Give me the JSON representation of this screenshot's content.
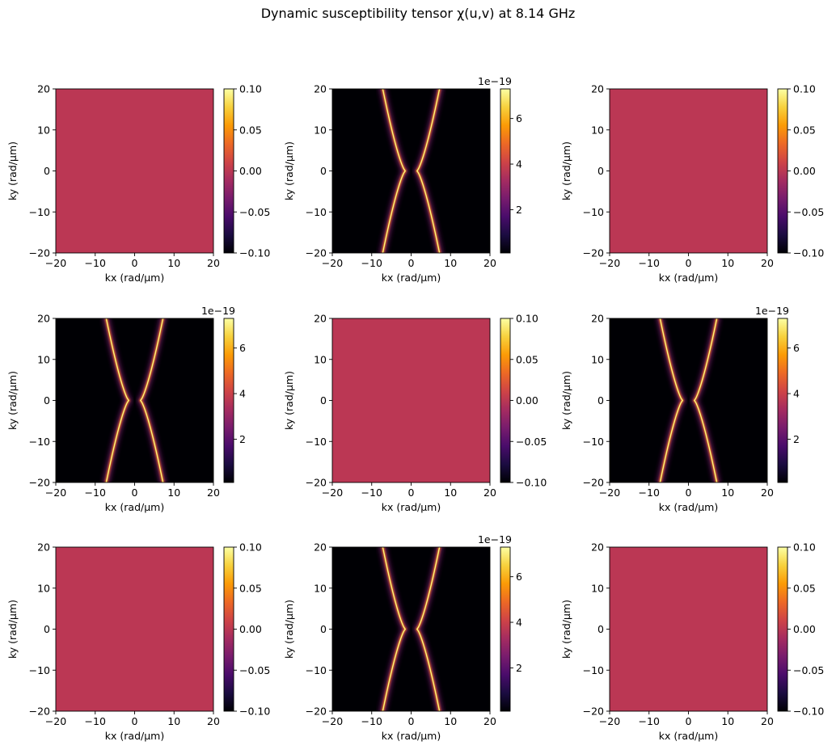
{
  "figure": {
    "title": "Dynamic susceptibility tensor χ(u,v) at 8.14 GHz"
  },
  "colors": {
    "uniform_field": "#bb3754",
    "colormap": "inferno",
    "colormap_stops": [
      "#000004",
      "#1b0c41",
      "#4a0c6b",
      "#781c6d",
      "#a52c60",
      "#cf4446",
      "#ed6925",
      "#fb9b06",
      "#f7d13d",
      "#fcffa4"
    ]
  },
  "chart_data": [
    {
      "type": "heatmap",
      "panel": "(1,1)",
      "xlabel": "kx (rad/µm)",
      "ylabel": "ky (rad/µm)",
      "xlim": [
        -20,
        20
      ],
      "ylim": [
        -20,
        20
      ],
      "xticks": [
        -20,
        -10,
        0,
        10,
        20
      ],
      "yticks": [
        -20,
        -10,
        0,
        10,
        20
      ],
      "field": "uniform",
      "value": 0.0,
      "colorbar": {
        "range": [
          -0.1,
          0.1
        ],
        "ticks": [
          "0.10",
          "0.05",
          "0.00",
          "−0.05",
          "−0.10"
        ],
        "tick_values": [
          0.1,
          0.05,
          0.0,
          -0.05,
          -0.1
        ],
        "offset": ""
      }
    },
    {
      "type": "heatmap",
      "panel": "(1,2)",
      "xlabel": "kx (rad/µm)",
      "ylabel": "ky (rad/µm)",
      "xlim": [
        -20,
        20
      ],
      "ylim": [
        -20,
        20
      ],
      "xticks": [
        -20,
        -10,
        0,
        10,
        20
      ],
      "yticks": [
        -20,
        -10,
        0,
        10,
        20
      ],
      "field": "dispersion_branches",
      "branch_kx_at_ky0": 1.5,
      "branch_kx_at_ky20": 7.2,
      "peak_value": 7.2e-19,
      "colorbar": {
        "range": [
          0.1,
          7.3
        ],
        "ticks": [
          "6",
          "4",
          "2"
        ],
        "tick_values": [
          6,
          4,
          2
        ],
        "offset": "1e−19"
      }
    },
    {
      "type": "heatmap",
      "panel": "(1,3)",
      "xlabel": "kx (rad/µm)",
      "ylabel": "ky (rad/µm)",
      "xlim": [
        -20,
        20
      ],
      "ylim": [
        -20,
        20
      ],
      "xticks": [
        -20,
        -10,
        0,
        10,
        20
      ],
      "yticks": [
        -20,
        -10,
        0,
        10,
        20
      ],
      "field": "uniform",
      "value": 0.0,
      "colorbar": {
        "range": [
          -0.1,
          0.1
        ],
        "ticks": [
          "0.10",
          "0.05",
          "0.00",
          "−0.05",
          "−0.10"
        ],
        "tick_values": [
          0.1,
          0.05,
          0.0,
          -0.05,
          -0.1
        ],
        "offset": ""
      }
    },
    {
      "type": "heatmap",
      "panel": "(2,1)",
      "xlabel": "kx (rad/µm)",
      "ylabel": "ky (rad/µm)",
      "xlim": [
        -20,
        20
      ],
      "ylim": [
        -20,
        20
      ],
      "xticks": [
        -20,
        -10,
        0,
        10,
        20
      ],
      "yticks": [
        -20,
        -10,
        0,
        10,
        20
      ],
      "field": "dispersion_branches",
      "branch_kx_at_ky0": 1.5,
      "branch_kx_at_ky20": 7.2,
      "peak_value": 7.2e-19,
      "colorbar": {
        "range": [
          0.1,
          7.3
        ],
        "ticks": [
          "6",
          "4",
          "2"
        ],
        "tick_values": [
          6,
          4,
          2
        ],
        "offset": "1e−19"
      }
    },
    {
      "type": "heatmap",
      "panel": "(2,2)",
      "xlabel": "kx (rad/µm)",
      "ylabel": "ky (rad/µm)",
      "xlim": [
        -20,
        20
      ],
      "ylim": [
        -20,
        20
      ],
      "xticks": [
        -20,
        -10,
        0,
        10,
        20
      ],
      "yticks": [
        -20,
        -10,
        0,
        10,
        20
      ],
      "field": "uniform",
      "value": 0.0,
      "colorbar": {
        "range": [
          -0.1,
          0.1
        ],
        "ticks": [
          "0.10",
          "0.05",
          "0.00",
          "−0.05",
          "−0.10"
        ],
        "tick_values": [
          0.1,
          0.05,
          0.0,
          -0.05,
          -0.1
        ],
        "offset": ""
      }
    },
    {
      "type": "heatmap",
      "panel": "(2,3)",
      "xlabel": "kx (rad/µm)",
      "ylabel": "ky (rad/µm)",
      "xlim": [
        -20,
        20
      ],
      "ylim": [
        -20,
        20
      ],
      "xticks": [
        -20,
        -10,
        0,
        10,
        20
      ],
      "yticks": [
        -20,
        -10,
        0,
        10,
        20
      ],
      "field": "dispersion_branches",
      "branch_kx_at_ky0": 1.5,
      "branch_kx_at_ky20": 7.2,
      "peak_value": 7.2e-19,
      "colorbar": {
        "range": [
          0.1,
          7.3
        ],
        "ticks": [
          "6",
          "4",
          "2"
        ],
        "tick_values": [
          6,
          4,
          2
        ],
        "offset": "1e−19"
      }
    },
    {
      "type": "heatmap",
      "panel": "(3,1)",
      "xlabel": "kx (rad/µm)",
      "ylabel": "ky (rad/µm)",
      "xlim": [
        -20,
        20
      ],
      "ylim": [
        -20,
        20
      ],
      "xticks": [
        -20,
        -10,
        0,
        10,
        20
      ],
      "yticks": [
        -20,
        -10,
        0,
        10,
        20
      ],
      "field": "uniform",
      "value": 0.0,
      "colorbar": {
        "range": [
          -0.1,
          0.1
        ],
        "ticks": [
          "0.10",
          "0.05",
          "0.00",
          "−0.05",
          "−0.10"
        ],
        "tick_values": [
          0.1,
          0.05,
          0.0,
          -0.05,
          -0.1
        ],
        "offset": ""
      }
    },
    {
      "type": "heatmap",
      "panel": "(3,2)",
      "xlabel": "kx (rad/µm)",
      "ylabel": "ky (rad/µm)",
      "xlim": [
        -20,
        20
      ],
      "ylim": [
        -20,
        20
      ],
      "xticks": [
        -20,
        -10,
        0,
        10,
        20
      ],
      "yticks": [
        -20,
        -10,
        0,
        10,
        20
      ],
      "field": "dispersion_branches",
      "branch_kx_at_ky0": 1.5,
      "branch_kx_at_ky20": 7.2,
      "peak_value": 7.2e-19,
      "colorbar": {
        "range": [
          0.1,
          7.3
        ],
        "ticks": [
          "6",
          "4",
          "2"
        ],
        "tick_values": [
          6,
          4,
          2
        ],
        "offset": "1e−19"
      }
    },
    {
      "type": "heatmap",
      "panel": "(3,3)",
      "xlabel": "kx (rad/µm)",
      "ylabel": "ky (rad/µm)",
      "xlim": [
        -20,
        20
      ],
      "ylim": [
        -20,
        20
      ],
      "xticks": [
        -20,
        -10,
        0,
        10,
        20
      ],
      "yticks": [
        -20,
        -10,
        0,
        10,
        20
      ],
      "field": "uniform",
      "value": 0.0,
      "colorbar": {
        "range": [
          -0.1,
          0.1
        ],
        "ticks": [
          "0.10",
          "0.05",
          "0.00",
          "−0.05",
          "−0.10"
        ],
        "tick_values": [
          0.1,
          0.05,
          0.0,
          -0.05,
          -0.1
        ],
        "offset": ""
      }
    }
  ]
}
